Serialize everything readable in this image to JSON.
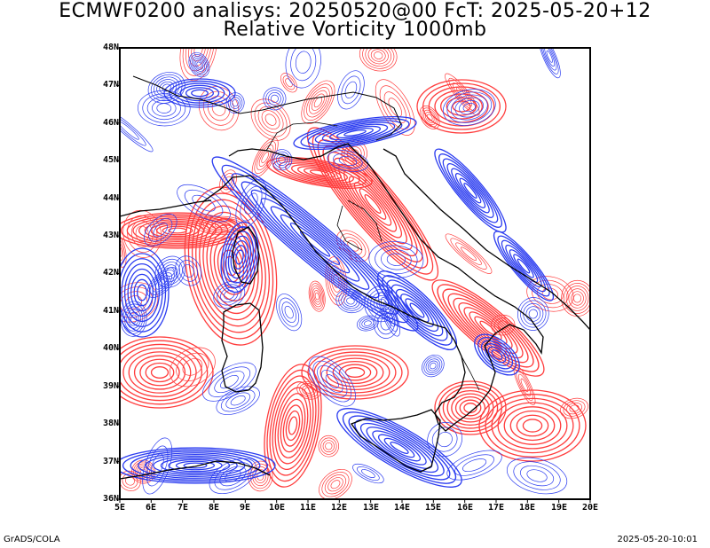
{
  "title_line1": "ECMWF0200 analisys: 20250520@00 FcT: 2025-05-20+12",
  "title_line2": "Relative Vorticity 1000mb",
  "lat_labels": [
    "48N",
    "47N",
    "46N",
    "45N",
    "44N",
    "43N",
    "42N",
    "41N",
    "40N",
    "39N",
    "38N",
    "37N",
    "36N"
  ],
  "lon_labels": [
    "5E",
    "6E",
    "7E",
    "8E",
    "9E",
    "10E",
    "11E",
    "12E",
    "13E",
    "14E",
    "15E",
    "16E",
    "17E",
    "18E",
    "19E",
    "20E"
  ],
  "footer_left": "GrADS/COLA",
  "footer_right": "2025-05-20-10:01",
  "colors": {
    "positive_contours": "#ff3c3c",
    "negative_contours": "#2b3cf0",
    "coastline": "#000000",
    "background": "#ffffff"
  },
  "map_extent": {
    "lon_min": 5,
    "lon_max": 20,
    "lat_min": 36,
    "lat_max": 48
  }
}
